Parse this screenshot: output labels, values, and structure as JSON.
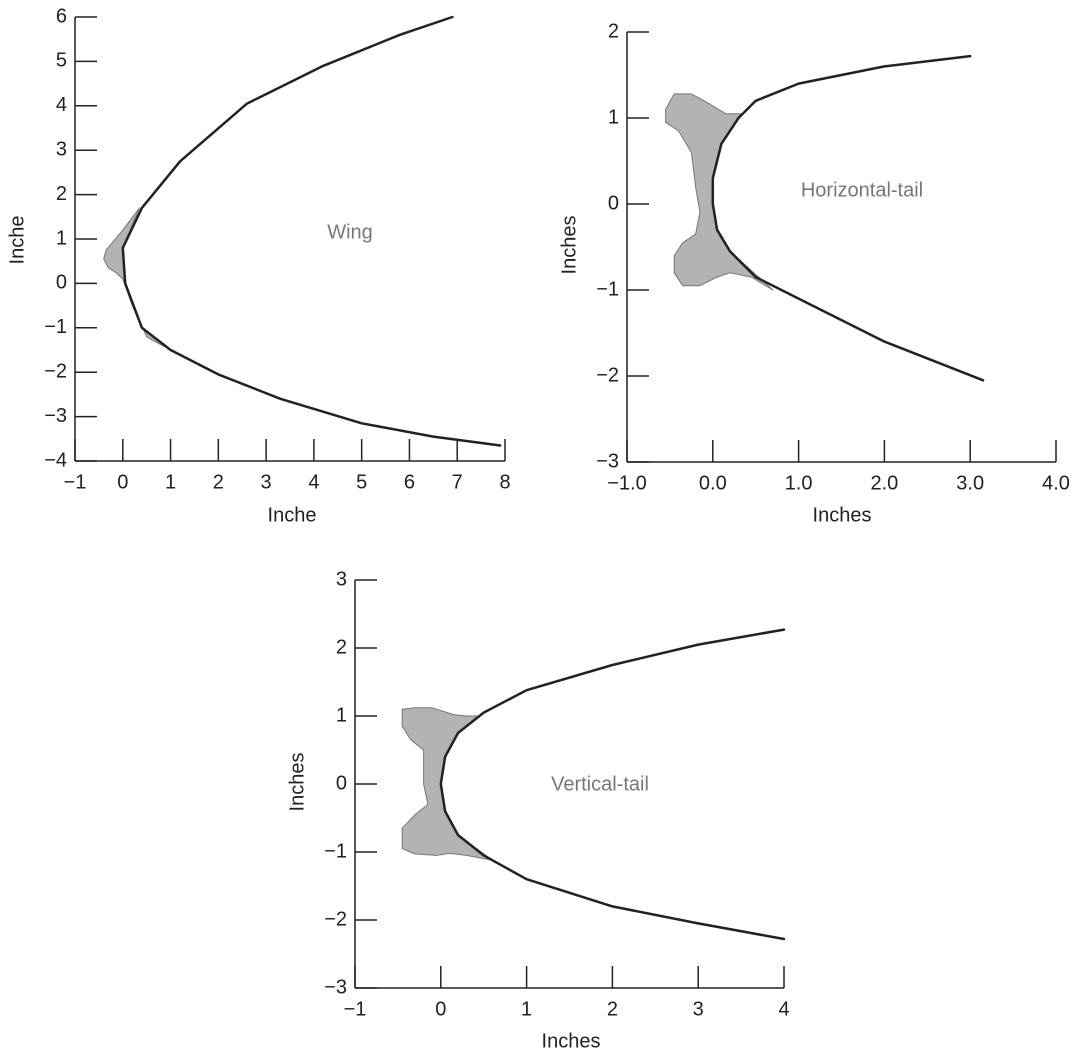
{
  "chart_data": [
    {
      "type": "line",
      "xlabel": "Inche",
      "ylabel": "Inche",
      "annotation": "Wing",
      "xlim": [
        -1,
        8
      ],
      "ylim": [
        -4,
        6
      ],
      "xticks": [
        {
          "value": -1,
          "label": "−1"
        },
        0,
        1,
        2,
        3,
        4,
        5,
        6,
        7,
        8
      ],
      "yticks": [
        {
          "value": -4,
          "label": "−4"
        },
        {
          "value": -3,
          "label": "−3"
        },
        {
          "value": -2,
          "label": "−2"
        },
        {
          "value": -1,
          "label": "−1"
        },
        0,
        1,
        2,
        3,
        4,
        5,
        6
      ],
      "series": [
        {
          "color": "#777777",
          "fill": "#b3b3b3",
          "x": [
            0.35,
            0.0,
            -0.35,
            -0.4,
            -0.3,
            -0.15,
            0.0,
            0.2,
            0.5,
            0.65,
            1.2,
            1.9,
            1.0,
            0.4,
            0.05,
            0.0
          ],
          "values": [
            1.7,
            1.2,
            0.75,
            0.55,
            0.35,
            0.25,
            0.1,
            -0.5,
            -1.2,
            -1.3,
            -1.6,
            -2.0,
            -1.5,
            -1.0,
            0,
            0.8
          ]
        },
        {
          "color": "#222222",
          "x": [
            6.9,
            5.8,
            4.2,
            2.6,
            1.2,
            0.4,
            0.0,
            0.05,
            0.4,
            1.0,
            2.0,
            3.3,
            5.0,
            6.5,
            7.9
          ],
          "values": [
            6.0,
            5.6,
            4.9,
            4.05,
            2.75,
            1.7,
            0.8,
            0,
            -1.0,
            -1.5,
            -2.05,
            -2.6,
            -3.15,
            -3.45,
            -3.65
          ]
        }
      ]
    },
    {
      "type": "line",
      "xlabel": "Inches",
      "ylabel": "Inches",
      "annotation": "Horizontal-tail",
      "xlim": [
        -1,
        4
      ],
      "ylim": [
        -3,
        2
      ],
      "xticks": [
        {
          "value": -1,
          "label": "−1.0"
        },
        {
          "value": 0,
          "label": "0.0"
        },
        {
          "value": 1,
          "label": "1.0"
        },
        {
          "value": 2,
          "label": "2.0"
        },
        {
          "value": 3,
          "label": "3.0"
        },
        {
          "value": 4,
          "label": "4.0"
        }
      ],
      "yticks": [
        {
          "value": -3,
          "label": "−3"
        },
        {
          "value": -2,
          "label": "−2"
        },
        {
          "value": -1,
          "label": "−1"
        },
        0,
        1,
        2
      ],
      "series": [
        {
          "color": "#777777",
          "fill": "#b3b3b3",
          "x": [
            0.35,
            0.15,
            -0.1,
            -0.25,
            -0.45,
            -0.55,
            -0.55,
            -0.4,
            -0.25,
            -0.2,
            -0.15,
            -0.2,
            -0.35,
            -0.45,
            -0.45,
            -0.35,
            -0.15,
            0.05,
            0.2,
            0.45,
            0.7,
            0.2,
            0.05,
            0,
            0,
            0.1,
            0.3
          ],
          "values": [
            1.05,
            1.05,
            1.2,
            1.28,
            1.28,
            1.1,
            0.95,
            0.85,
            0.6,
            0.2,
            -0.1,
            -0.35,
            -0.45,
            -0.6,
            -0.8,
            -0.95,
            -0.95,
            -0.85,
            -0.8,
            -0.85,
            -1.0,
            -0.55,
            -0.3,
            0,
            0.3,
            0.7,
            1.0
          ]
        },
        {
          "color": "#222222",
          "x": [
            3.0,
            2.0,
            1.0,
            0.5,
            0.3,
            0.1,
            0.0,
            0.0,
            0.05,
            0.2,
            0.5,
            1.0,
            1.5,
            2.0,
            3.15
          ],
          "values": [
            1.72,
            1.6,
            1.4,
            1.2,
            1.0,
            0.7,
            0.3,
            0,
            -0.3,
            -0.55,
            -0.85,
            -1.1,
            -1.35,
            -1.6,
            -2.05
          ]
        }
      ]
    },
    {
      "type": "line",
      "xlabel": "Inches",
      "ylabel": "Inches",
      "annotation": "Vertical-tail",
      "xlim": [
        -1,
        4
      ],
      "ylim": [
        -3,
        3
      ],
      "xticks": [
        {
          "value": -1,
          "label": "−1"
        },
        0,
        1,
        2,
        3,
        4
      ],
      "yticks": [
        {
          "value": -3,
          "label": "−3"
        },
        {
          "value": -2,
          "label": "−2"
        },
        {
          "value": -1,
          "label": "−1"
        },
        0,
        1,
        2,
        3
      ],
      "series": [
        {
          "color": "#777777",
          "fill": "#b3b3b3",
          "x": [
            0.45,
            0.3,
            0.15,
            -0.1,
            -0.3,
            -0.45,
            -0.45,
            -0.35,
            -0.2,
            -0.2,
            -0.15,
            -0.3,
            -0.45,
            -0.45,
            -0.3,
            -0.05,
            0.1,
            0.3,
            0.6,
            0.2,
            0.05,
            0,
            0.05,
            0.2
          ],
          "values": [
            1.0,
            1.0,
            1.02,
            1.12,
            1.12,
            1.1,
            0.85,
            0.65,
            0.5,
            0,
            -0.3,
            -0.45,
            -0.65,
            -0.95,
            -1.03,
            -1.05,
            -1.02,
            -1.05,
            -1.12,
            -0.75,
            -0.4,
            0,
            0.4,
            0.75
          ]
        },
        {
          "color": "#222222",
          "x": [
            4,
            3,
            2,
            1,
            0.5,
            0.2,
            0.05,
            0,
            0.05,
            0.2,
            0.5,
            0.6,
            1,
            2,
            3,
            4
          ],
          "values": [
            2.27,
            2.05,
            1.75,
            1.38,
            1.05,
            0.75,
            0.4,
            0,
            -0.4,
            -0.75,
            -1.05,
            -1.12,
            -1.4,
            -1.8,
            -2.05,
            -2.28
          ]
        }
      ]
    }
  ]
}
